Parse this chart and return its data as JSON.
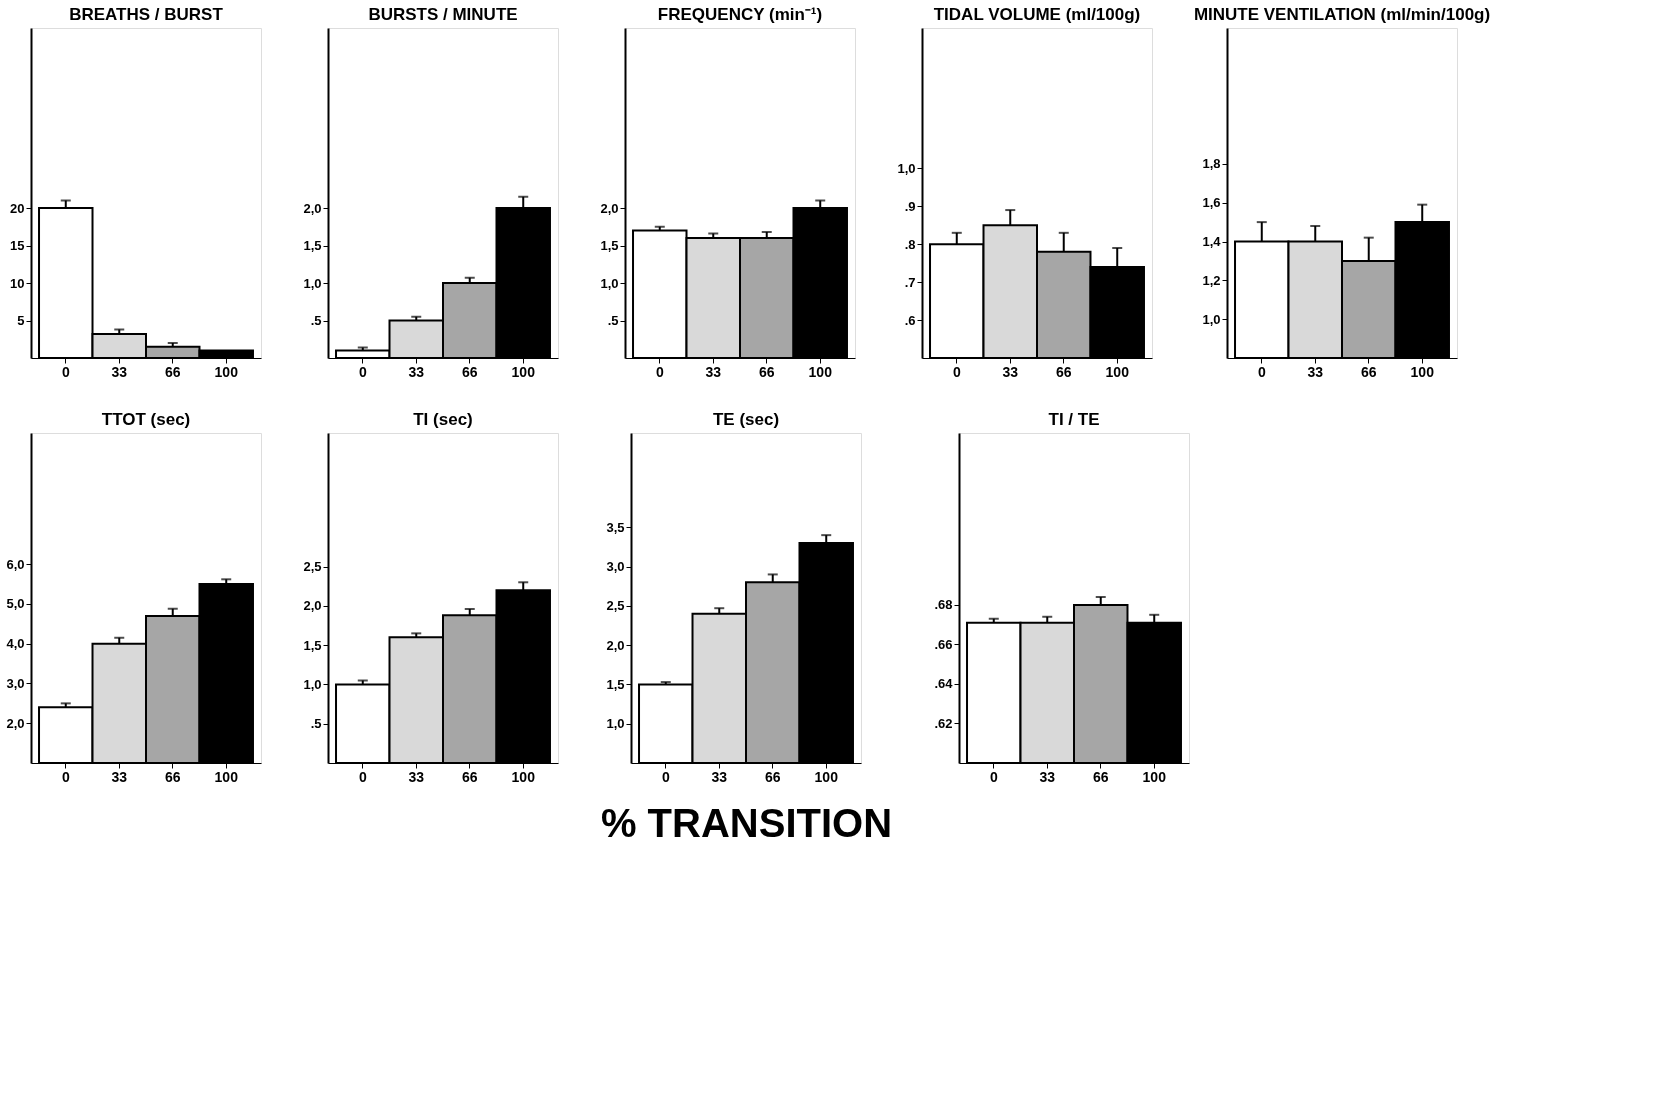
{
  "chart_data": [
    {
      "type": "bar",
      "title": "BREATHS / BURST",
      "categories": [
        "0",
        "33",
        "66",
        "100"
      ],
      "values": [
        20,
        3.2,
        1.5,
        1.0
      ],
      "errors": [
        [
          20,
          21
        ],
        [
          3.2,
          3.8
        ],
        [
          1.5,
          2.0
        ],
        null
      ],
      "colors": [
        "#ffffff",
        "#d9d9d9",
        "#a6a6a6",
        "#000000"
      ],
      "ylim": [
        0,
        44
      ],
      "yticks": [
        5,
        10,
        15,
        20
      ]
    },
    {
      "type": "bar",
      "title": "BURSTS / MINUTE",
      "categories": [
        "0",
        "33",
        "66",
        "100"
      ],
      "values": [
        0.1,
        0.5,
        1.0,
        2.0
      ],
      "errors": [
        [
          0.1,
          0.14
        ],
        [
          0.5,
          0.55
        ],
        [
          1.0,
          1.07
        ],
        [
          2.0,
          2.15
        ]
      ],
      "colors": [
        "#ffffff",
        "#d9d9d9",
        "#a6a6a6",
        "#000000"
      ],
      "ylim": [
        0,
        4.4
      ],
      "yticks": [
        {
          "value": 0.5,
          "label": ".5"
        },
        {
          "value": 1.0,
          "label": "1,0"
        },
        {
          "value": 1.5,
          "label": "1,5"
        },
        {
          "value": 2.0,
          "label": "2,0"
        }
      ]
    },
    {
      "type": "bar",
      "title": "FREQUENCY (min⁻¹)",
      "categories": [
        "0",
        "33",
        "66",
        "100"
      ],
      "values": [
        1.7,
        1.6,
        1.6,
        2.0
      ],
      "errors": [
        [
          1.7,
          1.75
        ],
        [
          1.6,
          1.66
        ],
        [
          1.6,
          1.68
        ],
        [
          2.0,
          2.1
        ]
      ],
      "colors": [
        "#ffffff",
        "#d9d9d9",
        "#a6a6a6",
        "#000000"
      ],
      "ylim": [
        0,
        4.4
      ],
      "yticks": [
        {
          "value": 0.5,
          "label": ".5"
        },
        {
          "value": 1.0,
          "label": "1,0"
        },
        {
          "value": 1.5,
          "label": "1,5"
        },
        {
          "value": 2.0,
          "label": "2,0"
        }
      ]
    },
    {
      "type": "bar",
      "title": "TIDAL VOLUME (ml/100g)",
      "categories": [
        "0",
        "33",
        "66",
        "100"
      ],
      "values": [
        0.8,
        0.85,
        0.78,
        0.74
      ],
      "errors": [
        [
          0.8,
          0.83
        ],
        [
          0.85,
          0.89
        ],
        [
          0.78,
          0.83
        ],
        [
          0.74,
          0.79
        ]
      ],
      "colors": [
        "#ffffff",
        "#d9d9d9",
        "#a6a6a6",
        "#000000"
      ],
      "ylim": [
        0.5,
        1.37
      ],
      "yticks": [
        {
          "value": 0.6,
          "label": ".6"
        },
        {
          "value": 0.7,
          "label": ".7"
        },
        {
          "value": 0.8,
          "label": ".8"
        },
        {
          "value": 0.9,
          "label": ".9"
        },
        {
          "value": 1.0,
          "label": "1,0"
        }
      ]
    },
    {
      "type": "bar",
      "title": "MINUTE VENTILATION (ml/min/100g)",
      "categories": [
        "0",
        "33",
        "66",
        "100"
      ],
      "values": [
        1.4,
        1.4,
        1.3,
        1.5
      ],
      "errors": [
        [
          1.4,
          1.5
        ],
        [
          1.4,
          1.48
        ],
        [
          1.3,
          1.42
        ],
        [
          1.5,
          1.59
        ]
      ],
      "colors": [
        "#ffffff",
        "#d9d9d9",
        "#a6a6a6",
        "#000000"
      ],
      "ylim": [
        0.8,
        2.5
      ],
      "yticks": [
        {
          "value": 1.0,
          "label": "1,0"
        },
        {
          "value": 1.2,
          "label": "1,2"
        },
        {
          "value": 1.4,
          "label": "1,4"
        },
        {
          "value": 1.6,
          "label": "1,6"
        },
        {
          "value": 1.8,
          "label": "1,8"
        }
      ]
    },
    {
      "type": "bar",
      "title": "TTOT (sec)",
      "categories": [
        "0",
        "33",
        "66",
        "100"
      ],
      "values": [
        2.4,
        4.0,
        4.7,
        5.5
      ],
      "errors": [
        [
          2.4,
          2.5
        ],
        [
          4.0,
          4.15
        ],
        [
          4.7,
          4.88
        ],
        [
          5.5,
          5.62
        ]
      ],
      "colors": [
        "#ffffff",
        "#d9d9d9",
        "#a6a6a6",
        "#000000"
      ],
      "ylim": [
        1.0,
        9.3
      ],
      "yticks": [
        {
          "value": 2.0,
          "label": "2,0"
        },
        {
          "value": 3.0,
          "label": "3,0"
        },
        {
          "value": 4.0,
          "label": "4,0"
        },
        {
          "value": 5.0,
          "label": "5,0"
        },
        {
          "value": 6.0,
          "label": "6,0"
        }
      ]
    },
    {
      "type": "bar",
      "title": "TI (sec)",
      "categories": [
        "0",
        "33",
        "66",
        "100"
      ],
      "values": [
        1.0,
        1.6,
        1.88,
        2.2
      ],
      "errors": [
        [
          1.0,
          1.05
        ],
        [
          1.6,
          1.65
        ],
        [
          1.88,
          1.96
        ],
        [
          2.2,
          2.3
        ]
      ],
      "colors": [
        "#ffffff",
        "#d9d9d9",
        "#a6a6a6",
        "#000000"
      ],
      "ylim": [
        0,
        4.2
      ],
      "yticks": [
        {
          "value": 0.5,
          "label": ".5"
        },
        {
          "value": 1.0,
          "label": "1,0"
        },
        {
          "value": 1.5,
          "label": "1,5"
        },
        {
          "value": 2.0,
          "label": "2,0"
        },
        {
          "value": 2.5,
          "label": "2,5"
        }
      ]
    },
    {
      "type": "bar",
      "title": "TE (sec)",
      "xlabel": "% TRANSITION",
      "categories": [
        "0",
        "33",
        "66",
        "100"
      ],
      "values": [
        1.5,
        2.4,
        2.8,
        3.3
      ],
      "errors": [
        [
          1.5,
          1.53
        ],
        [
          2.4,
          2.47
        ],
        [
          2.8,
          2.9
        ],
        [
          3.3,
          3.4
        ]
      ],
      "colors": [
        "#ffffff",
        "#d9d9d9",
        "#a6a6a6",
        "#000000"
      ],
      "ylim": [
        0.5,
        4.7
      ],
      "yticks": [
        {
          "value": 1.0,
          "label": "1,0"
        },
        {
          "value": 1.5,
          "label": "1,5"
        },
        {
          "value": 2.0,
          "label": "2,0"
        },
        {
          "value": 2.5,
          "label": "2,5"
        },
        {
          "value": 3.0,
          "label": "3,0"
        },
        {
          "value": 3.5,
          "label": "3,5"
        }
      ]
    },
    {
      "type": "bar",
      "title": "TI / TE",
      "categories": [
        "0",
        "33",
        "66",
        "100"
      ],
      "values": [
        0.671,
        0.671,
        0.68,
        0.671
      ],
      "errors": [
        [
          0.671,
          0.673
        ],
        [
          0.671,
          0.674
        ],
        [
          0.68,
          0.684
        ],
        [
          0.671,
          0.675
        ]
      ],
      "colors": [
        "#ffffff",
        "#d9d9d9",
        "#a6a6a6",
        "#000000"
      ],
      "ylim": [
        0.6,
        0.767
      ],
      "yticks": [
        {
          "value": 0.62,
          "label": ".62"
        },
        {
          "value": 0.64,
          "label": ".64"
        },
        {
          "value": 0.66,
          "label": ".66"
        },
        {
          "value": 0.68,
          "label": ".68"
        }
      ]
    }
  ]
}
